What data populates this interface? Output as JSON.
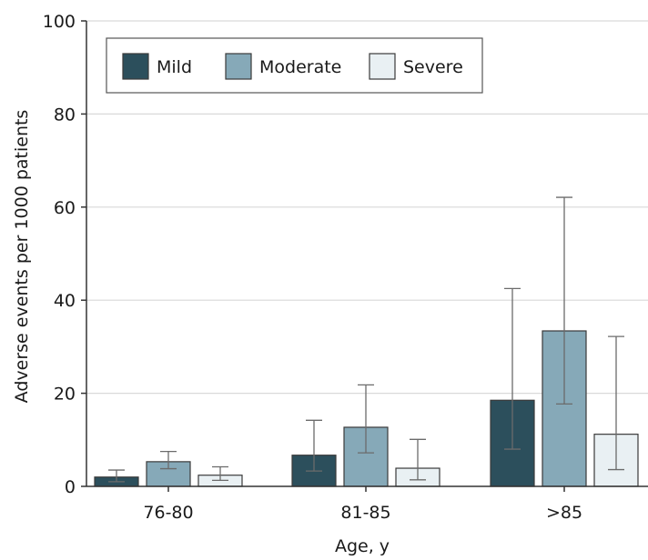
{
  "chart_data": {
    "type": "bar",
    "title": "",
    "xlabel": "Age, y",
    "ylabel": "Adverse events per 1000 patients",
    "ylim": [
      0,
      100
    ],
    "yticks": [
      0,
      20,
      40,
      60,
      80,
      100
    ],
    "grid": "horizontal",
    "legend_position": "top-left",
    "categories": [
      "76-80",
      "81-85",
      ">85"
    ],
    "series": [
      {
        "name": "Mild",
        "color": "#2c4f5c",
        "values": [
          2,
          6.7,
          18.5
        ],
        "lower": [
          1,
          3.3,
          8
        ],
        "upper": [
          3.5,
          14.2,
          42.5
        ]
      },
      {
        "name": "Moderate",
        "color": "#86a9b8",
        "values": [
          5.3,
          12.7,
          33.4
        ],
        "lower": [
          3.8,
          7.2,
          17.7
        ],
        "upper": [
          7.5,
          21.8,
          62.1
        ]
      },
      {
        "name": "Severe",
        "color": "#e9f0f3",
        "values": [
          2.4,
          3.9,
          11.2
        ],
        "lower": [
          1.3,
          1.4,
          3.6
        ],
        "upper": [
          4.2,
          10.1,
          32.2
        ]
      }
    ]
  }
}
